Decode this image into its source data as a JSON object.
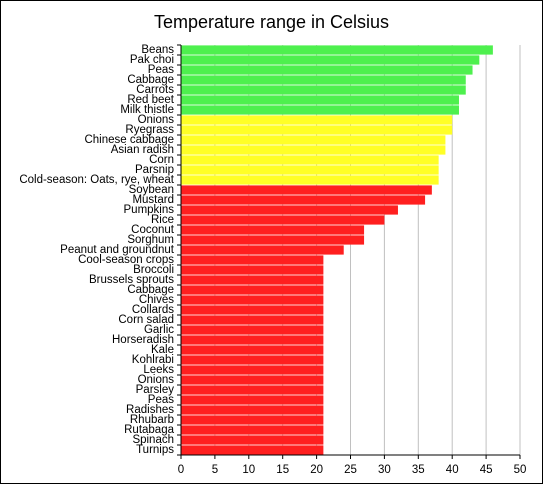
{
  "chart_data": {
    "type": "bar",
    "orientation": "horizontal",
    "title": "Temperature range in Celsius",
    "xlabel": "",
    "ylabel": "",
    "xlim": [
      0,
      50
    ],
    "x_ticks": [
      0,
      5,
      10,
      15,
      20,
      25,
      30,
      35,
      40,
      45,
      50
    ],
    "grid": "vertical gridlines",
    "legend": "none",
    "colors": {
      "green": "#4ef04e",
      "yellow": "#ffff26",
      "red": "#ff1f1f",
      "grid": "#c0c0c0"
    },
    "categories": [
      "Beans",
      "Pak choi",
      "Peas",
      "Cabbage",
      "Carrots",
      "Red beet",
      "Milk thistle",
      "Onions",
      "Ryegrass",
      "Chinese cabbage",
      "Asian radish",
      "Corn",
      "Parsnip",
      "Cold-season: Oats, rye, wheat",
      "Soybean",
      "Mustard",
      "Pumpkins",
      "Rice",
      "Coconut",
      "Sorghum",
      "Peanut and groundnut",
      "Cool-season crops",
      "Broccoli",
      "Brussels sprouts",
      "Cabbage",
      "Chives",
      "Collards",
      "Corn salad",
      "Garlic",
      "Horseradish",
      "Kale",
      "Kohlrabi",
      "Leeks",
      "Onions",
      "Parsley",
      "Peas",
      "Radishes",
      "Rhubarb",
      "Rutabaga",
      "Spinach",
      "Turnips"
    ],
    "values": [
      46,
      44,
      43,
      42,
      42,
      41,
      41,
      40,
      40,
      39,
      39,
      38,
      38,
      38,
      37,
      36,
      32,
      30,
      27,
      27,
      24,
      21,
      21,
      21,
      21,
      21,
      21,
      21,
      21,
      21,
      21,
      21,
      21,
      21,
      21,
      21,
      21,
      21,
      21,
      21,
      21
    ],
    "bar_colors": [
      "green",
      "green",
      "green",
      "green",
      "green",
      "green",
      "green",
      "yellow",
      "yellow",
      "yellow",
      "yellow",
      "yellow",
      "yellow",
      "yellow",
      "red",
      "red",
      "red",
      "red",
      "red",
      "red",
      "red",
      "red",
      "red",
      "red",
      "red",
      "red",
      "red",
      "red",
      "red",
      "red",
      "red",
      "red",
      "red",
      "red",
      "red",
      "red",
      "red",
      "red",
      "red",
      "red",
      "red"
    ]
  }
}
